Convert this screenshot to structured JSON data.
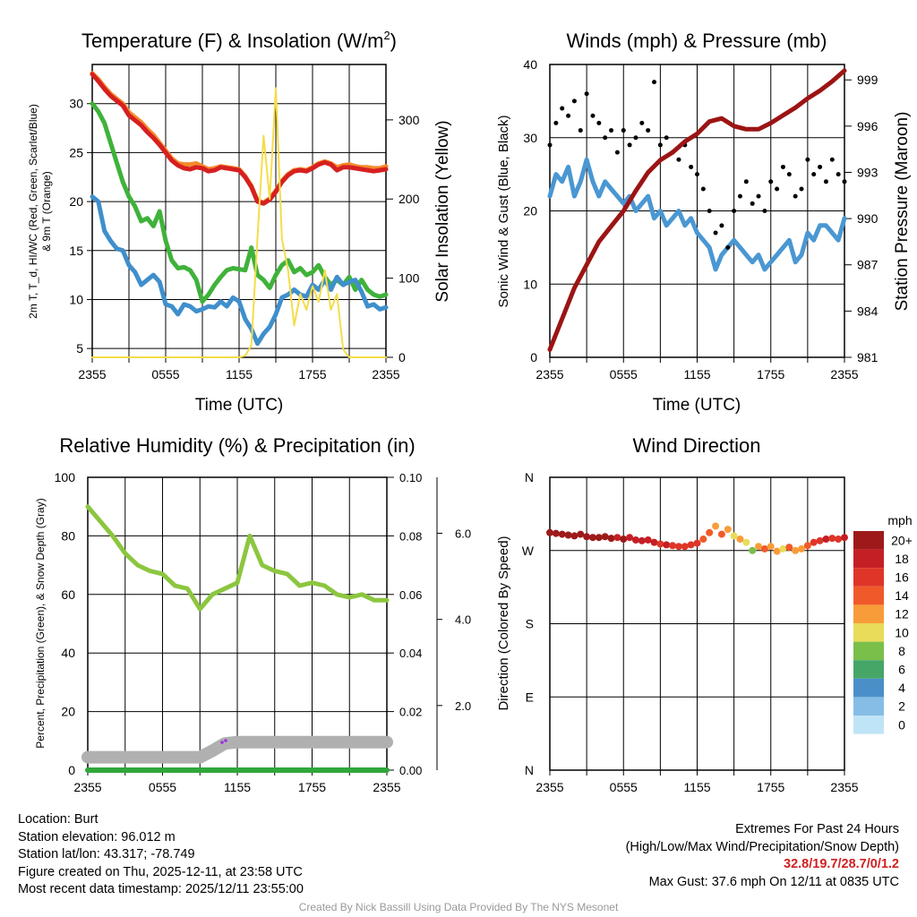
{
  "colors": {
    "temp": "#d62020",
    "temp9m": "#f58a2a",
    "dewpoint": "#3fb23a",
    "windchill": "#3f8fcc",
    "solar": "#f5dc4a",
    "wind": "#4a97d2",
    "gust": "#000000",
    "pressure": "#9c1414",
    "rh": "#8cc63f",
    "precip": "#2fa83a",
    "snow": "#b0b0b0"
  },
  "footer": {
    "location": "Location: Burt",
    "elevation": "Station elevation: 96.012 m",
    "latlon": "Station lat/lon: 43.317; -78.749",
    "created": "Figure created on Thu, 2025-12-11, at 23:58 UTC",
    "recent": "Most recent data timestamp: 2025/12/11 23:55:00",
    "extremes_title": "Extremes For Past 24 Hours",
    "extremes_sub": "(High/Low/Max Wind/Precipitation/Snow Depth)",
    "extremes_values": "32.8/19.7/28.7/0/1.2",
    "max_gust": "Max Gust: 37.6 mph On 12/11 at 0835 UTC",
    "credit": "Created By Nick Bassill Using Data Provided By The NYS Mesonet"
  },
  "chart_data": [
    {
      "type": "line",
      "title": "Temperature (F) & Insolation (W/m",
      "title_sup": "2",
      "title_end": ")",
      "xlabel": "Time (UTC)",
      "ylabel": "2m T, T_d, HI/WC (Red, Green, Scarlet/Blue)",
      "ylabel2": "& 9m T (Orange)",
      "y2label": "Solar Insolation (Yellow)",
      "xticks": [
        "2355",
        "0555",
        "1155",
        "1755",
        "2355"
      ],
      "yticks": [
        5,
        10,
        15,
        20,
        25,
        30
      ],
      "y2ticks": [
        0,
        100,
        200,
        300
      ],
      "ylim": [
        4.1,
        34
      ],
      "y2lim": [
        0,
        370
      ],
      "x_hours_step": 0.5,
      "series": [
        {
          "name": "2m T",
          "values": [
            33,
            32.3,
            31.5,
            30.8,
            30.3,
            29.8,
            28.8,
            28.3,
            27.8,
            27.1,
            26.5,
            25.8,
            25,
            24.2,
            23.7,
            23.4,
            23.3,
            23.5,
            23.4,
            23.1,
            23.2,
            23.5,
            23.4,
            23.3,
            23.2,
            22.5,
            21.5,
            20,
            19.8,
            20.2,
            21,
            22,
            22.7,
            23.1,
            23.2,
            23.1,
            23.4,
            23.8,
            24,
            23.8,
            23.2,
            23.5,
            23.5,
            23.4,
            23.3,
            23.2,
            23.1,
            23.2,
            23.3
          ]
        },
        {
          "name": "9m T",
          "values": [
            33.1,
            32.5,
            31.7,
            31,
            30.5,
            30,
            29.1,
            28.6,
            28.1,
            27.4,
            26.8,
            26,
            25.2,
            24.4,
            23.9,
            23.8,
            23.8,
            23.9,
            23.6,
            23.3,
            23.4,
            23.6,
            23.5,
            23.4,
            23.3,
            22.6,
            21.6,
            20.1,
            19.9,
            20.3,
            21.1,
            22.1,
            22.8,
            23.2,
            23.3,
            23.2,
            23.5,
            23.9,
            24.1,
            23.9,
            23.5,
            23.7,
            23.8,
            23.6,
            23.5,
            23.5,
            23.4,
            23.4,
            23.6
          ]
        },
        {
          "name": "2m Td",
          "values": [
            30,
            29.2,
            28,
            26,
            24,
            22,
            20.5,
            19.5,
            18,
            18.3,
            17.5,
            19,
            16,
            14,
            13.2,
            13.3,
            13,
            12,
            9.8,
            10.5,
            11.5,
            12.3,
            13,
            13.2,
            13.1,
            13,
            15.3,
            12.5,
            12,
            11.2,
            12.5,
            13.5,
            14,
            12.8,
            13.2,
            12.5,
            12.8,
            13.5,
            12.3,
            11.5,
            12,
            11.5,
            12.3,
            11,
            12,
            11,
            10.5,
            10.3,
            10.5
          ]
        },
        {
          "name": "Wind chill",
          "values": [
            20.5,
            20,
            17,
            16,
            15.2,
            15,
            13.5,
            12.8,
            11.5,
            12,
            12.5,
            11.8,
            9.5,
            9.3,
            8.5,
            9.5,
            9.3,
            8.8,
            9,
            9.3,
            9.2,
            9.8,
            9.3,
            10.2,
            9.8,
            8,
            7,
            5.5,
            6.5,
            7.2,
            8.5,
            10.2,
            10.5,
            11,
            10.5,
            10.3,
            11.5,
            11,
            12,
            11,
            12.3,
            11.5,
            11.8,
            12,
            10.8,
            9.3,
            9.5,
            9,
            9.2
          ]
        },
        {
          "name": "Solar insolation",
          "axis": "right",
          "values": [
            0,
            0,
            0,
            0,
            0,
            0,
            0,
            0,
            0,
            0,
            0,
            0,
            0,
            0,
            0,
            0,
            0,
            0,
            0,
            0,
            0,
            0,
            0,
            0,
            0,
            2,
            15,
            150,
            280,
            200,
            340,
            150,
            110,
            40,
            80,
            60,
            90,
            70,
            110,
            60,
            80,
            10,
            0,
            0,
            0,
            0,
            0,
            0,
            0
          ]
        }
      ]
    },
    {
      "type": "line",
      "title": "Winds (mph) & Pressure (mb)",
      "xlabel": "Time (UTC)",
      "ylabel": "Sonic Wind & Gust (Blue, Black)",
      "y2label": "Station Pressure (Maroon)",
      "xticks": [
        "2355",
        "0555",
        "1155",
        "1755",
        "2355"
      ],
      "yticks": [
        0,
        10,
        20,
        30,
        40
      ],
      "y2ticks": [
        981,
        984,
        987,
        990,
        993,
        996,
        999
      ],
      "ylim": [
        0,
        40
      ],
      "y2lim": [
        981,
        1000
      ],
      "x_hours_step": 0.5,
      "series": [
        {
          "name": "Sonic wind",
          "values": [
            22,
            25,
            24,
            26,
            22,
            24,
            27,
            24,
            22,
            24,
            23,
            22,
            21,
            22,
            20,
            21,
            22,
            19,
            20,
            18,
            19,
            20,
            18,
            19,
            17,
            16,
            15,
            12,
            14,
            15,
            16,
            15,
            14,
            13,
            14,
            12,
            13,
            14,
            15,
            16,
            13,
            14,
            17,
            16,
            18,
            18,
            17,
            16,
            19
          ]
        },
        {
          "name": "Gust",
          "type": "scatter",
          "values": [
            29,
            32,
            34,
            33,
            35,
            31,
            36,
            33,
            32,
            30,
            31,
            28,
            31,
            29,
            30,
            32,
            31,
            37.6,
            29,
            30,
            28,
            27,
            29,
            26,
            25,
            23,
            20,
            17,
            18,
            15,
            20,
            22,
            24,
            21,
            22,
            20,
            24,
            23,
            26,
            25,
            22,
            23,
            27,
            25,
            26,
            24,
            27,
            25,
            24
          ]
        },
        {
          "name": "Station pressure",
          "axis": "right",
          "x_hours_step": 1,
          "values": [
            981.5,
            983.5,
            985.5,
            987,
            988.5,
            989.5,
            990.5,
            991.8,
            993,
            993.8,
            994.3,
            995,
            995.5,
            996.3,
            996.5,
            996,
            995.8,
            995.8,
            996.2,
            996.7,
            997.2,
            997.8,
            998.3,
            998.9,
            999.6
          ]
        }
      ]
    },
    {
      "type": "line",
      "title": "Relative Humidity (%) & Precipitation (in)",
      "ylabel": "Percent, Precipitation (Green), & Snow Depth (Gray)",
      "xticks": [
        "2355",
        "0555",
        "1155",
        "1755",
        "2355"
      ],
      "yticks": [
        0,
        20,
        40,
        60,
        80,
        100
      ],
      "y2ticks": [
        "0.00",
        "0.02",
        "0.04",
        "0.06",
        "0.08",
        "0.10"
      ],
      "y3ticks": [
        "2.0",
        "4.0",
        "6.0"
      ],
      "ylim": [
        0,
        100
      ],
      "y2lim": [
        0,
        0.1
      ],
      "y3lim": [
        0.5,
        7.3
      ],
      "x_hours_step": 1,
      "series": [
        {
          "name": "Relative humidity",
          "values": [
            90,
            85,
            80,
            74,
            70,
            68,
            67,
            63,
            62,
            55,
            60,
            62,
            64,
            80,
            70,
            68,
            67,
            63,
            64,
            63,
            60,
            59,
            60,
            58,
            58
          ]
        },
        {
          "name": "Precipitation",
          "axis": "right",
          "values": [
            0,
            0,
            0,
            0,
            0,
            0,
            0,
            0,
            0,
            0,
            0,
            0,
            0,
            0,
            0,
            0,
            0,
            0,
            0,
            0,
            0,
            0,
            0,
            0,
            0
          ]
        },
        {
          "name": "Snow depth",
          "axis": "far-right",
          "values": [
            0.8,
            0.8,
            0.8,
            0.8,
            0.8,
            0.8,
            0.8,
            0.8,
            0.8,
            0.8,
            0.95,
            1.12,
            1.15,
            1.15,
            1.15,
            1.15,
            1.15,
            1.15,
            1.15,
            1.15,
            1.15,
            1.15,
            1.15,
            1.15,
            1.15
          ]
        }
      ]
    },
    {
      "type": "scatter",
      "title": "Wind Direction",
      "ylabel": "Direction (Colored By Speed)",
      "xticks": [
        "2355",
        "0555",
        "1155",
        "1755",
        "2355"
      ],
      "yticks": [
        "N",
        "E",
        "S",
        "W",
        "N"
      ],
      "ylim": [
        0,
        360
      ],
      "x_hours_step": 0.5,
      "direction": [
        292,
        291,
        290,
        289,
        288,
        290,
        287,
        286,
        286,
        287,
        285,
        286,
        284,
        286,
        283,
        282,
        283,
        280,
        278,
        277,
        276,
        275,
        275,
        277,
        279,
        284,
        292,
        300,
        290,
        296,
        288,
        284,
        280,
        270,
        275,
        272,
        275,
        269,
        272,
        274,
        270,
        272,
        276,
        280,
        282,
        284,
        285,
        284,
        286
      ],
      "speed": [
        22,
        22,
        21,
        21,
        22,
        21,
        20,
        21,
        20,
        21,
        20,
        19,
        20,
        19,
        19,
        18,
        19,
        18,
        17,
        18,
        17,
        17,
        17,
        16,
        16,
        15,
        15,
        13,
        14,
        12,
        10,
        12,
        11,
        9,
        13,
        14,
        12,
        13,
        11,
        14,
        12,
        13,
        15,
        16,
        17,
        18,
        17,
        16,
        18
      ],
      "colorbar_title": "mph",
      "colorbar_labels": [
        "20+",
        "18",
        "16",
        "14",
        "12",
        "10",
        "8",
        "6",
        "4",
        "2",
        "0"
      ],
      "colorbar_colors": [
        "#9e1a1a",
        "#c41f24",
        "#de3528",
        "#f05a2a",
        "#f89c3a",
        "#e8dc5a",
        "#7abf4a",
        "#45a668",
        "#4a8fc8",
        "#86bde6",
        "#c0e4f7"
      ]
    }
  ]
}
